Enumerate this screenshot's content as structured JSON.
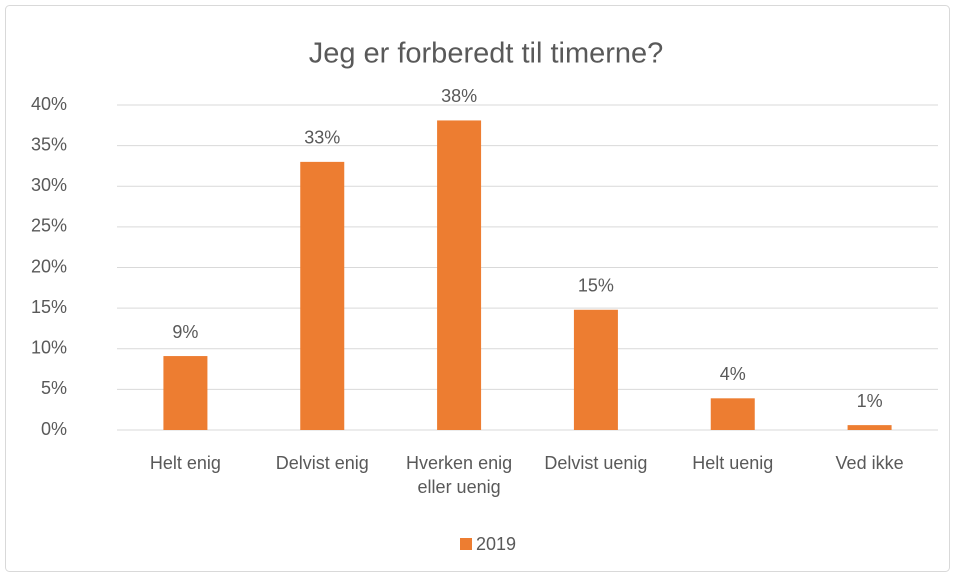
{
  "chart_data": {
    "type": "bar",
    "title": "Jeg er forberedt til timerne?",
    "categories": [
      "Helt enig",
      "Delvist enig",
      "Hverken enig eller uenig",
      "Delvist uenig",
      "Helt uenig",
      "Ved ikke"
    ],
    "series": [
      {
        "name": "2019",
        "color": "#ed7d31",
        "values": [
          9.1,
          33,
          38.1,
          14.8,
          3.9,
          0.6
        ],
        "value_labels": [
          "9%",
          "33%",
          "38%",
          "15%",
          "4%",
          "1%"
        ]
      }
    ],
    "ylim": [
      0,
      40
    ],
    "yticks": [
      {
        "value": 0,
        "label": "0%"
      },
      {
        "value": 5,
        "label": "5%"
      },
      {
        "value": 10,
        "label": "10%"
      },
      {
        "value": 15,
        "label": "15%"
      },
      {
        "value": 20,
        "label": "20%"
      },
      {
        "value": 25,
        "label": "25%"
      },
      {
        "value": 30,
        "label": "30%"
      },
      {
        "value": 35,
        "label": "35%"
      },
      {
        "value": 40,
        "label": "40%"
      }
    ],
    "grid": true,
    "legend": "bottom"
  }
}
